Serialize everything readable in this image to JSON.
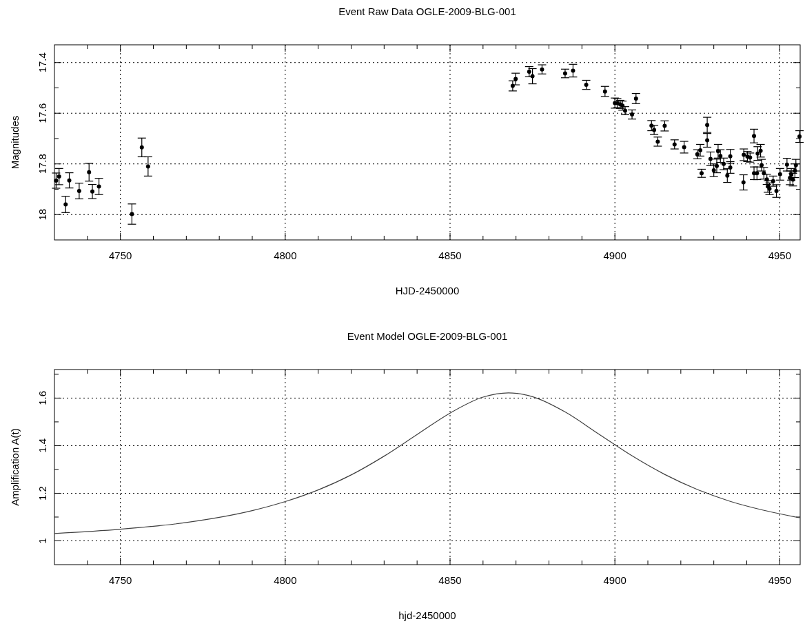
{
  "chart_data": [
    {
      "type": "scatter",
      "title": "Event Raw Data OGLE-2009-BLG-001",
      "xlabel": "HJD-2450000",
      "ylabel": "Magnitudes",
      "color": "#000000",
      "marker": "circle",
      "grid": true,
      "x": [
        4730.5,
        4731.4,
        4733.4,
        4734.5,
        4737.5,
        4740.5,
        4741.5,
        4743.5,
        4753.5,
        4756.5,
        4758.4,
        4869.0,
        4869.9,
        4874.0,
        4875.0,
        4877.9,
        4884.9,
        4887.3,
        4891.3,
        4897.0,
        4900.0,
        4900.7,
        4901.6,
        4902.3,
        4903.1,
        4905.2,
        4906.4,
        4911.1,
        4911.9,
        4913.0,
        4915.1,
        4918.1,
        4921.0,
        4925.0,
        4925.9,
        4926.3,
        4928.0,
        4928.0,
        4929.0,
        4930.0,
        4930.9,
        4931.3,
        4932.0,
        4933.0,
        4934.1,
        4935.0,
        4935.0,
        4939.0,
        4939.1,
        4940.2,
        4941.0,
        4942.2,
        4942.2,
        4943.1,
        4943.3,
        4944.2,
        4944.5,
        4945.2,
        4946.1,
        4946.4,
        4946.9,
        4948.0,
        4949.0,
        4950.1,
        4952.2,
        4953.1,
        4953.5,
        4954.0,
        4954.6,
        4954.9,
        4956.0
      ],
      "values": [
        17.866,
        17.85,
        17.96,
        17.865,
        17.907,
        17.833,
        17.909,
        17.889,
        17.998,
        17.735,
        17.81,
        17.492,
        17.465,
        17.436,
        17.454,
        17.427,
        17.443,
        17.432,
        17.488,
        17.514,
        17.56,
        17.56,
        17.565,
        17.57,
        17.59,
        17.605,
        17.542,
        17.649,
        17.666,
        17.712,
        17.65,
        17.723,
        17.734,
        17.762,
        17.746,
        17.837,
        17.646,
        17.707,
        17.78,
        17.825,
        17.808,
        17.75,
        17.769,
        17.8,
        17.846,
        17.77,
        17.814,
        17.873,
        17.764,
        17.771,
        17.775,
        17.69,
        17.837,
        17.837,
        17.759,
        17.748,
        17.805,
        17.837,
        17.861,
        17.889,
        17.898,
        17.868,
        17.907,
        17.841,
        17.803,
        17.855,
        17.841,
        17.862,
        17.827,
        17.805,
        17.692
      ],
      "errors": [
        0.03,
        0.032,
        0.032,
        0.03,
        0.031,
        0.035,
        0.028,
        0.032,
        0.04,
        0.037,
        0.038,
        0.02,
        0.023,
        0.02,
        0.03,
        0.018,
        0.017,
        0.025,
        0.018,
        0.02,
        0.02,
        0.018,
        0.016,
        0.018,
        0.016,
        0.018,
        0.02,
        0.02,
        0.018,
        0.018,
        0.02,
        0.018,
        0.023,
        0.018,
        0.023,
        0.016,
        0.03,
        0.027,
        0.027,
        0.025,
        0.027,
        0.027,
        0.025,
        0.023,
        0.027,
        0.027,
        0.023,
        0.03,
        0.023,
        0.02,
        0.018,
        0.027,
        0.025,
        0.025,
        0.027,
        0.025,
        0.023,
        0.023,
        0.02,
        0.023,
        0.023,
        0.02,
        0.025,
        0.023,
        0.025,
        0.027,
        0.023,
        0.025,
        0.027,
        0.023,
        0.023
      ],
      "xlim": [
        4730,
        4956.2
      ],
      "ylim": [
        18.1,
        17.33
      ],
      "xticks": [
        {
          "value": 4740,
          "label": null
        },
        4750,
        {
          "value": 4760,
          "label": null
        },
        {
          "value": 4770,
          "label": null
        },
        {
          "value": 4780,
          "label": null
        },
        {
          "value": 4790,
          "label": null
        },
        4800,
        {
          "value": 4810,
          "label": null
        },
        {
          "value": 4820,
          "label": null
        },
        {
          "value": 4830,
          "label": null
        },
        {
          "value": 4840,
          "label": null
        },
        4850,
        {
          "value": 4860,
          "label": null
        },
        {
          "value": 4870,
          "label": null
        },
        {
          "value": 4880,
          "label": null
        },
        {
          "value": 4890,
          "label": null
        },
        4900,
        {
          "value": 4910,
          "label": null
        },
        {
          "value": 4920,
          "label": null
        },
        {
          "value": 4930,
          "label": null
        },
        {
          "value": 4940,
          "label": null
        },
        4950
      ],
      "yticks": [
        17.4,
        {
          "value": 17.5,
          "label": null
        },
        17.6,
        {
          "value": 17.7,
          "label": null
        },
        17.8,
        {
          "value": 17.9,
          "label": null
        },
        18
      ]
    },
    {
      "type": "line",
      "title": "Event Model OGLE-2009-BLG-001",
      "xlabel": "hjd-2450000",
      "ylabel": "Amplification A(t)",
      "color": "#404040",
      "grid": true,
      "x": [
        4730,
        4750,
        4770,
        4790,
        4800,
        4810,
        4820,
        4830,
        4840,
        4850,
        4860,
        4867.7,
        4875,
        4885,
        4895,
        4905,
        4915,
        4925,
        4935,
        4945,
        4956
      ],
      "values": [
        1.031,
        1.049,
        1.077,
        1.127,
        1.165,
        1.214,
        1.277,
        1.356,
        1.447,
        1.537,
        1.604,
        1.622,
        1.606,
        1.541,
        1.45,
        1.359,
        1.28,
        1.216,
        1.166,
        1.129,
        1.097
      ],
      "xlim": [
        4730,
        4956.2
      ],
      "ylim": [
        0.9,
        1.72
      ],
      "xticks": [
        {
          "value": 4740,
          "label": null
        },
        4750,
        {
          "value": 4760,
          "label": null
        },
        {
          "value": 4770,
          "label": null
        },
        {
          "value": 4780,
          "label": null
        },
        {
          "value": 4790,
          "label": null
        },
        4800,
        {
          "value": 4810,
          "label": null
        },
        {
          "value": 4820,
          "label": null
        },
        {
          "value": 4830,
          "label": null
        },
        {
          "value": 4840,
          "label": null
        },
        4850,
        {
          "value": 4860,
          "label": null
        },
        {
          "value": 4870,
          "label": null
        },
        {
          "value": 4880,
          "label": null
        },
        {
          "value": 4890,
          "label": null
        },
        4900,
        {
          "value": 4910,
          "label": null
        },
        {
          "value": 4920,
          "label": null
        },
        {
          "value": 4930,
          "label": null
        },
        {
          "value": 4940,
          "label": null
        },
        4950
      ],
      "yticks": [
        1,
        {
          "value": 1.1,
          "label": null
        },
        1.2,
        {
          "value": 1.3,
          "label": null
        },
        1.4,
        {
          "value": 1.5,
          "label": null
        },
        1.6,
        {
          "value": 1.7,
          "label": null
        }
      ]
    }
  ]
}
